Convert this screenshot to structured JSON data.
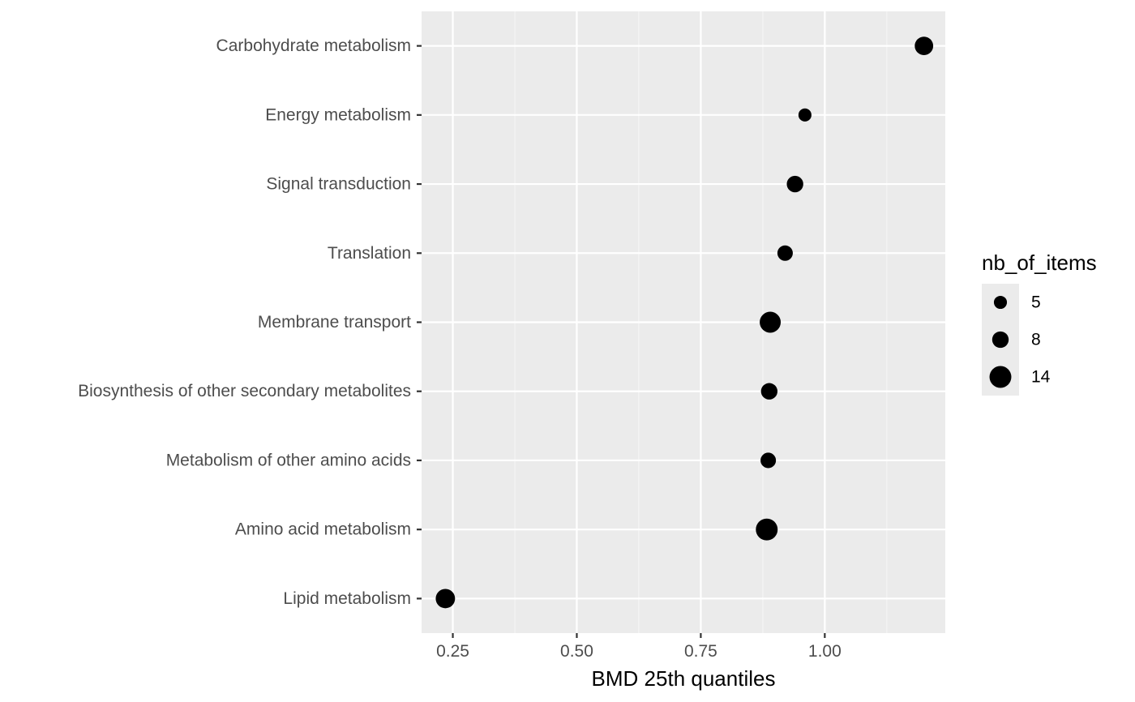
{
  "chart_data": {
    "type": "scatter",
    "xlabel": "BMD 25th quantiles",
    "ylabel": "",
    "xlim": [
      0.187,
      1.243
    ],
    "x_ticks": [
      {
        "value": 0.25,
        "label": "0.25"
      },
      {
        "value": 0.5,
        "label": "0.50"
      },
      {
        "value": 0.75,
        "label": "0.75"
      },
      {
        "value": 1.0,
        "label": "1.00"
      }
    ],
    "x_minor_ticks": [
      0.375,
      0.625,
      0.875,
      1.125
    ],
    "categories": [
      "Lipid metabolism",
      "Amino acid metabolism",
      "Metabolism of other amino acids",
      "Biosynthesis of other secondary metabolites",
      "Membrane transport",
      "Translation",
      "Signal transduction",
      "Energy metabolism",
      "Carbohydrate metabolism"
    ],
    "points": [
      {
        "category": "Lipid metabolism",
        "x": 0.235,
        "size": 11
      },
      {
        "category": "Amino acid metabolism",
        "x": 0.883,
        "size": 14
      },
      {
        "category": "Metabolism of other amino acids",
        "x": 0.886,
        "size": 7
      },
      {
        "category": "Biosynthesis of other secondary metabolites",
        "x": 0.888,
        "size": 8
      },
      {
        "category": "Membrane transport",
        "x": 0.89,
        "size": 13
      },
      {
        "category": "Translation",
        "x": 0.92,
        "size": 7
      },
      {
        "category": "Signal transduction",
        "x": 0.94,
        "size": 8
      },
      {
        "category": "Energy metabolism",
        "x": 0.96,
        "size": 5
      },
      {
        "category": "Carbohydrate metabolism",
        "x": 1.2,
        "size": 10
      }
    ],
    "legend": {
      "title": "nb_of_items",
      "placement": "right",
      "entries": [
        {
          "label": "5",
          "size": 5
        },
        {
          "label": "8",
          "size": 8
        },
        {
          "label": "14",
          "size": 14
        }
      ]
    },
    "grid": true,
    "colors": {
      "panel_background": "#ebebeb",
      "grid_major": "#ffffff",
      "grid_minor": "#f5f5f5",
      "point": "#000000",
      "axis_text": "#4d4d4d",
      "tick": "#333333",
      "legend_key_background": "#ebebeb"
    }
  }
}
